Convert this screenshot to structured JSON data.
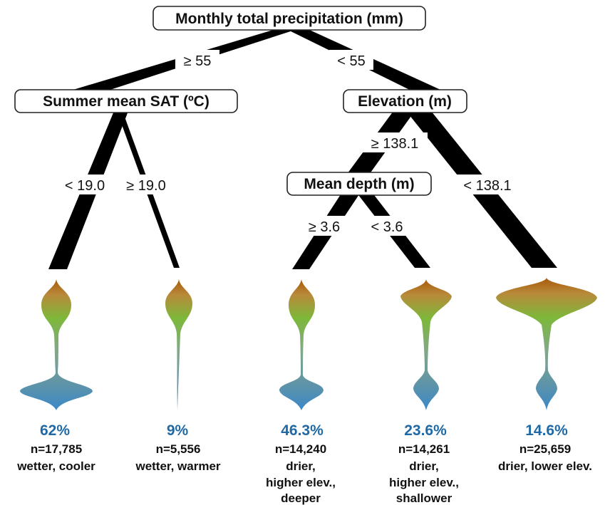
{
  "nodes": {
    "root": "Monthly total precipitation (mm)",
    "left": "Summer mean SAT (ºC)",
    "right": "Elevation (m)",
    "depth": "Mean depth (m)"
  },
  "splits": {
    "root_left": "≥ 55",
    "root_right": "< 55",
    "sat_low": "< 19.0",
    "sat_high": "≥ 19.0",
    "elev_high": "≥ 138.1",
    "elev_low": "< 138.1",
    "depth_high": "≥ 3.6",
    "depth_low": "< 3.6"
  },
  "leaves": [
    {
      "pct": "62%",
      "n": "n=17,785",
      "desc": [
        "wetter, cooler"
      ]
    },
    {
      "pct": "9%",
      "n": "n=5,556",
      "desc": [
        "wetter, warmer"
      ]
    },
    {
      "pct": "46.3%",
      "n": "n=14,240",
      "desc": [
        "drier,",
        "higher elev.,",
        "deeper"
      ]
    },
    {
      "pct": "23.6%",
      "n": "n=14,261",
      "desc": [
        "drier,",
        "higher elev.,",
        "shallower"
      ]
    },
    {
      "pct": "14.6%",
      "n": "n=25,659",
      "desc": [
        "drier, lower elev."
      ]
    }
  ],
  "colors": {
    "violin_top": "#a85a0a",
    "violin_mid": "#7db83a",
    "violin_bottom": "#4f8fb0",
    "percent": "#1f6aa6"
  }
}
